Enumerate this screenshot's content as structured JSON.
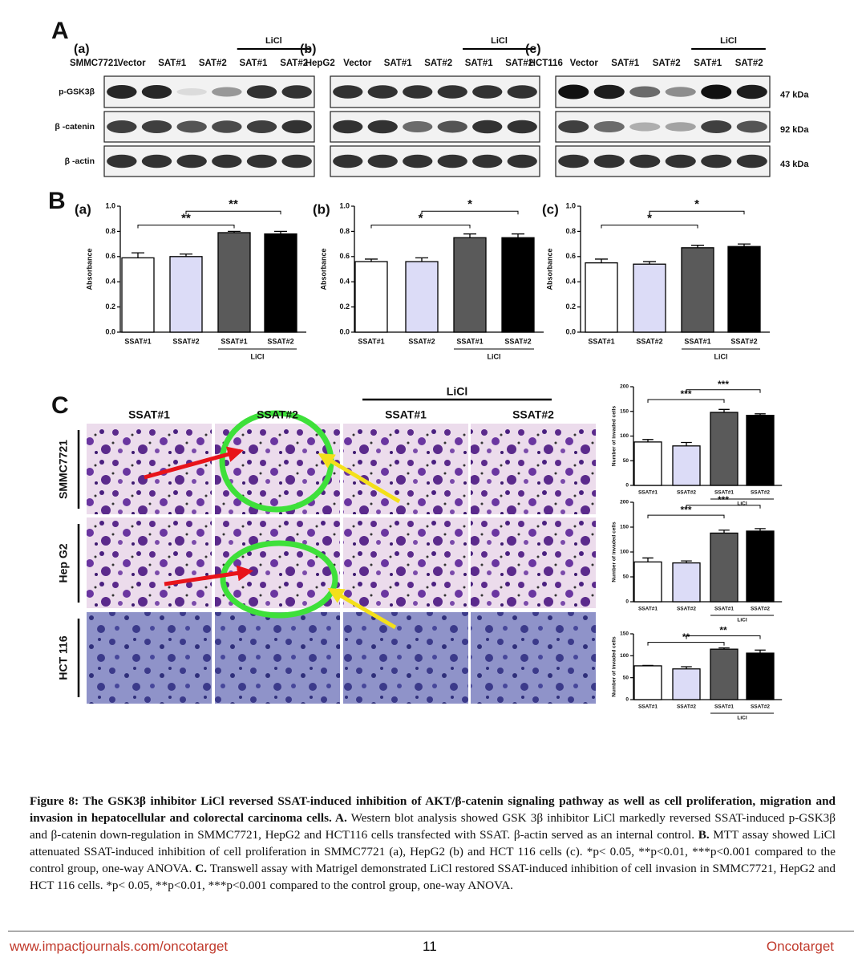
{
  "panel_a": {
    "label": "A",
    "groups": [
      {
        "tag": "(a)",
        "lanes": [
          "SMMC7721",
          "Vector",
          "SAT#1",
          "SAT#2",
          "SAT#1",
          "SAT#2"
        ],
        "treatment": "LiCl"
      },
      {
        "tag": "(b)",
        "lanes": [
          "HepG2",
          "Vector",
          "SAT#1",
          "SAT#2",
          "SAT#1",
          "SAT#2"
        ],
        "treatment": "LiCl"
      },
      {
        "tag": "(c)",
        "lanes": [
          "HCT116",
          "Vector",
          "SAT#1",
          "SAT#2",
          "SAT#1",
          "SAT#2"
        ],
        "treatment": "LiCl"
      }
    ],
    "rows": [
      "p-GSK3β",
      "β -catenin",
      "β -actin"
    ],
    "sizes": [
      "47 kDa",
      "92 kDa",
      "43 kDa"
    ]
  },
  "panel_b": {
    "label": "B",
    "charts": [
      {
        "type": "bar",
        "tag": "(a)",
        "y_label": "Absorbance",
        "categories": [
          "SSAT#1",
          "SSAT#2",
          "SSAT#1",
          "SSAT#2"
        ],
        "values": [
          0.59,
          0.6,
          0.79,
          0.78
        ],
        "errors": [
          0.04,
          0.02,
          0.01,
          0.02
        ],
        "colors": [
          "#ffffff",
          "#dcdcf7",
          "#5a5a5a",
          "#000000"
        ],
        "group_label": "LiCl",
        "comparisons": [
          "**",
          "**"
        ],
        "ylim": [
          0,
          1
        ],
        "yticks": [
          {
            "value": 0,
            "label": "0.0"
          },
          0.2,
          0.4,
          0.6,
          0.8,
          {
            "value": 1,
            "label": "1.0"
          }
        ]
      },
      {
        "type": "bar",
        "tag": "(b)",
        "y_label": "Absorbance",
        "categories": [
          "SSAT#1",
          "SSAT#2",
          "SSAT#1",
          "SSAT#2"
        ],
        "values": [
          0.56,
          0.56,
          0.75,
          0.75
        ],
        "errors": [
          0.02,
          0.03,
          0.03,
          0.03
        ],
        "colors": [
          "#ffffff",
          "#dcdcf7",
          "#5a5a5a",
          "#000000"
        ],
        "group_label": "LiCl",
        "comparisons": [
          "*",
          "*"
        ],
        "ylim": [
          0,
          1
        ],
        "yticks": [
          {
            "value": 0,
            "label": "0.0"
          },
          0.2,
          0.4,
          0.6,
          0.8,
          {
            "value": 1,
            "label": "1.0"
          }
        ]
      },
      {
        "type": "bar",
        "tag": "(c)",
        "y_label": "Absorbance",
        "categories": [
          "SSAT#1",
          "SSAT#2",
          "SSAT#1",
          "SSAT#2"
        ],
        "values": [
          0.55,
          0.54,
          0.67,
          0.68
        ],
        "errors": [
          0.03,
          0.02,
          0.02,
          0.02
        ],
        "colors": [
          "#ffffff",
          "#dcdcf7",
          "#5a5a5a",
          "#000000"
        ],
        "group_label": "LiCl",
        "comparisons": [
          "*",
          "*"
        ],
        "ylim": [
          0,
          1
        ],
        "yticks": [
          {
            "value": 0,
            "label": "0.0"
          },
          0.2,
          0.4,
          0.6,
          0.8,
          {
            "value": 1,
            "label": "1.0"
          }
        ]
      }
    ]
  },
  "panel_c": {
    "label": "C",
    "treatment": "LiCl",
    "columns": [
      "SSAT#1",
      "SSAT#2",
      "SSAT#1",
      "SSAT#2"
    ],
    "rows": [
      "SMMC7721",
      "Hep G2",
      "HCT 116"
    ],
    "charts": [
      {
        "type": "bar",
        "y_label": "Number of invaded cells",
        "categories": [
          "SSAT#1",
          "SSAT#2",
          "SSAT#1",
          "SSAT#2"
        ],
        "values": [
          88,
          80,
          148,
          142
        ],
        "errors": [
          5,
          7,
          6,
          3
        ],
        "colors": [
          "#ffffff",
          "#dcdcf7",
          "#5a5a5a",
          "#000000"
        ],
        "group_label": "LiCl",
        "comparisons": [
          "***",
          "***"
        ],
        "ylim": [
          0,
          200
        ],
        "yticks": [
          0,
          50,
          100,
          150,
          200
        ]
      },
      {
        "type": "bar",
        "y_label": "Number of invaded cells",
        "categories": [
          "SSAT#1",
          "SSAT#2",
          "SSAT#1",
          "SSAT#2"
        ],
        "values": [
          80,
          78,
          138,
          142
        ],
        "errors": [
          8,
          4,
          6,
          5
        ],
        "colors": [
          "#ffffff",
          "#dcdcf7",
          "#5a5a5a",
          "#000000"
        ],
        "group_label": "LiCl",
        "comparisons": [
          "***",
          "***"
        ],
        "ylim": [
          0,
          200
        ],
        "yticks": [
          0,
          50,
          100,
          150,
          200
        ]
      },
      {
        "type": "bar",
        "y_label": "Number of invaded cells",
        "categories": [
          "SSAT#1",
          "SSAT#2",
          "SSAT#1",
          "SSAT#2"
        ],
        "values": [
          77,
          70,
          115,
          106
        ],
        "errors": [
          1,
          5,
          3,
          7
        ],
        "colors": [
          "#ffffff",
          "#dcdcf7",
          "#5a5a5a",
          "#000000"
        ],
        "group_label": "LiCl",
        "comparisons": [
          "**",
          "**"
        ],
        "ylim": [
          0,
          150
        ],
        "yticks": [
          0,
          50,
          100,
          150
        ]
      }
    ]
  },
  "caption": [
    {
      "text": "Figure 8: The GSK3β inhibitor LiCl reversed SSAT-induced inhibition of AKT/β-catenin signaling pathway as well as cell proliferation, migration and invasion in hepatocellular and colorectal carcinoma cells. A.",
      "bold": true
    },
    {
      "text": "Western blot analysis showed GSK 3β inhibitor LiCl markedly reversed SSAT-induced p-GSK3β and β-catenin down-regulation in SMMC7721, HepG2 and HCT116 cells transfected with SSAT. β-actin served as an internal control.",
      "bold": false
    },
    {
      "text": "B.",
      "bold": true
    },
    {
      "text": "MTT assay showed LiCl attenuated SSAT-induced inhibition of cell proliferation in SMMC7721 (a), HepG2 (b) and HCT 116 cells (c). *p< 0.05, **p<0.01, ***p<0.001 compared to the control group, one-way ANOVA.",
      "bold": false
    },
    {
      "text": "C.",
      "bold": true
    },
    {
      "text": "Transwell assay with Matrigel demonstrated LiCl restored SSAT-induced inhibition of cell invasion in SMMC7721, HepG2 and HCT 116 cells. *p< 0.05, **p<0.01, ***p<0.001 compared to the control group, one-way ANOVA.",
      "bold": false
    }
  ],
  "footer": {
    "url": "www.impactjournals.com/oncotarget",
    "page": "11",
    "journal": "Oncotarget"
  }
}
